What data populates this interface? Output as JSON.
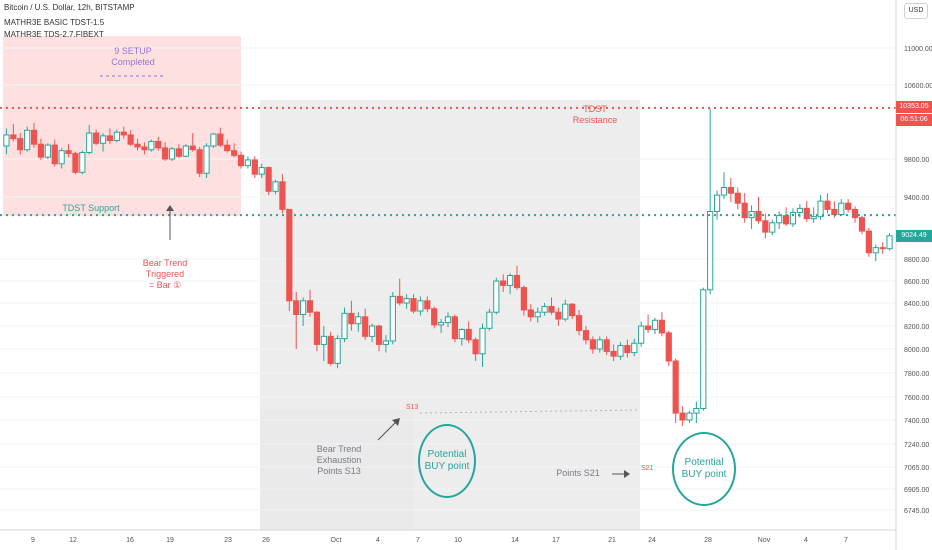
{
  "header": {
    "title": "Bitcoin / U.S. Dollar, 12h, BITSTAMP",
    "indicator1": "MATHR3E BASIC TDST-1.5",
    "indicator2": "MATHR3E TDS-2.7.FIBEXT",
    "currency": "USD"
  },
  "colors": {
    "up": "#26a69a",
    "down": "#ef5350",
    "resistance": "#ef5350",
    "support": "#26a69a",
    "setup_zone": "#ffd6d6",
    "exhaustion_zone": "#e9e9e9",
    "setup_label": "#9575cd"
  },
  "price_tags": {
    "resistance": "10353.05",
    "countdown": "06:51:06",
    "last": "9024.49"
  },
  "annotations": {
    "setup": "9 SETUP\nCompleted",
    "resistance": "TDST Resistance",
    "support": "TDST Support",
    "bear_trend": "Bear Trend\nTriggered\n= Bar ①",
    "exhaustion": "Bear Trend\nExhaustion\nPoints S13",
    "points21": "Points S21",
    "buy1": "Potential\nBUY point",
    "buy2": "Potential\nBUY point",
    "s13": "S13",
    "s21": "S21"
  },
  "chart_data": {
    "type": "candlestick",
    "symbol": "Bitcoin / U.S. Dollar",
    "interval": "12h",
    "exchange": "BITSTAMP",
    "y_ticks": [
      11000,
      10600,
      9800,
      9400,
      8800,
      8600,
      8400,
      8200,
      8000,
      7800,
      7600,
      7400,
      7240,
      7065,
      6905,
      6745
    ],
    "x_labels": [
      "9",
      "12",
      "16",
      "19",
      "23",
      "26",
      "Oct",
      "4",
      "7",
      "10",
      "14",
      "17",
      "21",
      "24",
      "28",
      "Nov",
      "4",
      "7"
    ],
    "levels": {
      "tdst_resistance": 10353.05,
      "tdst_support": 9225,
      "last_price": 9024.49
    },
    "candles": [
      [
        9940,
        10130,
        9850,
        10060
      ],
      [
        10060,
        10180,
        9990,
        10020
      ],
      [
        10020,
        10080,
        9850,
        9900
      ],
      [
        9900,
        10150,
        9880,
        10110
      ],
      [
        10110,
        10190,
        9920,
        9960
      ],
      [
        9960,
        10020,
        9790,
        9820
      ],
      [
        9820,
        9970,
        9800,
        9950
      ],
      [
        9950,
        10010,
        9720,
        9750
      ],
      [
        9750,
        9920,
        9700,
        9890
      ],
      [
        9890,
        9960,
        9820,
        9860
      ],
      [
        9860,
        9880,
        9640,
        9660
      ],
      [
        9660,
        9890,
        9640,
        9870
      ],
      [
        9870,
        10170,
        9850,
        10080
      ],
      [
        10080,
        10120,
        9950,
        9970
      ],
      [
        9970,
        10080,
        9880,
        10050
      ],
      [
        10050,
        10130,
        9960,
        10000
      ],
      [
        10000,
        10120,
        9980,
        10090
      ],
      [
        10090,
        10150,
        10020,
        10060
      ],
      [
        10060,
        10110,
        9940,
        9960
      ],
      [
        9960,
        10020,
        9890,
        9930
      ],
      [
        9930,
        9980,
        9850,
        9900
      ],
      [
        9900,
        10010,
        9880,
        9990
      ],
      [
        9990,
        10040,
        9890,
        9920
      ],
      [
        9920,
        9980,
        9780,
        9800
      ],
      [
        9800,
        9930,
        9780,
        9910
      ],
      [
        9910,
        9960,
        9810,
        9830
      ],
      [
        9830,
        9960,
        9820,
        9940
      ],
      [
        9940,
        10080,
        9880,
        9900
      ],
      [
        9900,
        9930,
        9610,
        9650
      ],
      [
        9650,
        9970,
        9600,
        9940
      ],
      [
        9940,
        10080,
        9920,
        10070
      ],
      [
        10070,
        10140,
        9930,
        9950
      ],
      [
        9950,
        10010,
        9870,
        9890
      ],
      [
        9890,
        9970,
        9820,
        9840
      ],
      [
        9840,
        9880,
        9700,
        9730
      ],
      [
        9730,
        9830,
        9700,
        9790
      ],
      [
        9790,
        9830,
        9600,
        9640
      ],
      [
        9640,
        9750,
        9600,
        9710
      ],
      [
        9710,
        9720,
        9420,
        9460
      ],
      [
        9460,
        9580,
        9430,
        9560
      ],
      [
        9560,
        9640,
        9240,
        9280
      ],
      [
        9280,
        9280,
        8330,
        8420
      ],
      [
        8420,
        8500,
        8000,
        8300
      ],
      [
        8300,
        8450,
        8200,
        8420
      ],
      [
        8420,
        8520,
        8280,
        8320
      ],
      [
        8320,
        8330,
        7980,
        8040
      ],
      [
        8040,
        8200,
        7900,
        8110
      ],
      [
        8110,
        8150,
        7860,
        7880
      ],
      [
        7880,
        8120,
        7840,
        8090
      ],
      [
        8090,
        8360,
        8060,
        8310
      ],
      [
        8310,
        8420,
        8160,
        8220
      ],
      [
        8220,
        8320,
        8150,
        8280
      ],
      [
        8280,
        8350,
        8080,
        8110
      ],
      [
        8110,
        8220,
        8060,
        8200
      ],
      [
        8200,
        8210,
        7980,
        8040
      ],
      [
        8040,
        8120,
        7970,
        8070
      ],
      [
        8070,
        8500,
        8040,
        8460
      ],
      [
        8460,
        8620,
        8380,
        8400
      ],
      [
        8400,
        8480,
        8350,
        8440
      ],
      [
        8440,
        8480,
        8310,
        8330
      ],
      [
        8330,
        8460,
        8290,
        8420
      ],
      [
        8420,
        8460,
        8320,
        8350
      ],
      [
        8350,
        8370,
        8180,
        8210
      ],
      [
        8210,
        8260,
        8140,
        8230
      ],
      [
        8230,
        8320,
        8190,
        8280
      ],
      [
        8280,
        8300,
        8060,
        8090
      ],
      [
        8090,
        8180,
        8030,
        8170
      ],
      [
        8170,
        8240,
        8050,
        8080
      ],
      [
        8080,
        8100,
        7900,
        7960
      ],
      [
        7960,
        8220,
        7850,
        8180
      ],
      [
        8180,
        8350,
        8160,
        8320
      ],
      [
        8320,
        8630,
        8300,
        8600
      ],
      [
        8600,
        8660,
        8500,
        8560
      ],
      [
        8560,
        8670,
        8480,
        8650
      ],
      [
        8650,
        8740,
        8520,
        8540
      ],
      [
        8540,
        8560,
        8290,
        8340
      ],
      [
        8340,
        8390,
        8240,
        8280
      ],
      [
        8280,
        8360,
        8230,
        8320
      ],
      [
        8320,
        8400,
        8290,
        8370
      ],
      [
        8370,
        8450,
        8300,
        8320
      ],
      [
        8320,
        8360,
        8200,
        8260
      ],
      [
        8260,
        8430,
        8240,
        8390
      ],
      [
        8390,
        8400,
        8260,
        8290
      ],
      [
        8290,
        8340,
        8120,
        8160
      ],
      [
        8160,
        8200,
        8040,
        8080
      ],
      [
        8080,
        8110,
        7960,
        8000
      ],
      [
        8000,
        8110,
        7970,
        8080
      ],
      [
        8080,
        8110,
        7950,
        7980
      ],
      [
        7980,
        8040,
        7900,
        7940
      ],
      [
        7940,
        8060,
        7910,
        8030
      ],
      [
        8030,
        8080,
        7930,
        7970
      ],
      [
        7970,
        8090,
        7940,
        8050
      ],
      [
        8050,
        8240,
        8020,
        8200
      ],
      [
        8200,
        8300,
        8140,
        8170
      ],
      [
        8170,
        8270,
        8130,
        8250
      ],
      [
        8250,
        8320,
        8110,
        8140
      ],
      [
        8140,
        8160,
        7860,
        7900
      ],
      [
        7900,
        7920,
        7380,
        7460
      ],
      [
        7460,
        7520,
        7360,
        7400
      ],
      [
        7400,
        7480,
        7380,
        7460
      ],
      [
        7460,
        7560,
        7380,
        7500
      ],
      [
        7500,
        8540,
        7480,
        8520
      ],
      [
        8520,
        10350,
        8480,
        9260
      ],
      [
        9260,
        9470,
        9180,
        9420
      ],
      [
        9420,
        9660,
        9380,
        9500
      ],
      [
        9500,
        9600,
        9350,
        9440
      ],
      [
        9440,
        9500,
        9280,
        9340
      ],
      [
        9340,
        9440,
        9150,
        9200
      ],
      [
        9200,
        9320,
        9090,
        9260
      ],
      [
        9260,
        9400,
        9140,
        9170
      ],
      [
        9170,
        9240,
        9000,
        9060
      ],
      [
        9060,
        9180,
        9030,
        9150
      ],
      [
        9150,
        9260,
        9090,
        9220
      ],
      [
        9220,
        9300,
        9120,
        9140
      ],
      [
        9140,
        9290,
        9110,
        9250
      ],
      [
        9250,
        9330,
        9200,
        9290
      ],
      [
        9290,
        9360,
        9160,
        9190
      ],
      [
        9190,
        9300,
        9150,
        9210
      ],
      [
        9210,
        9420,
        9180,
        9360
      ],
      [
        9360,
        9440,
        9240,
        9280
      ],
      [
        9280,
        9360,
        9200,
        9230
      ],
      [
        9230,
        9380,
        9220,
        9340
      ],
      [
        9340,
        9380,
        9250,
        9280
      ],
      [
        9280,
        9310,
        9150,
        9200
      ],
      [
        9200,
        9220,
        9040,
        9070
      ],
      [
        9070,
        9100,
        8820,
        8860
      ],
      [
        8860,
        8940,
        8780,
        8910
      ],
      [
        8910,
        8960,
        8850,
        8900
      ],
      [
        8900,
        9050,
        8880,
        9024
      ]
    ]
  }
}
